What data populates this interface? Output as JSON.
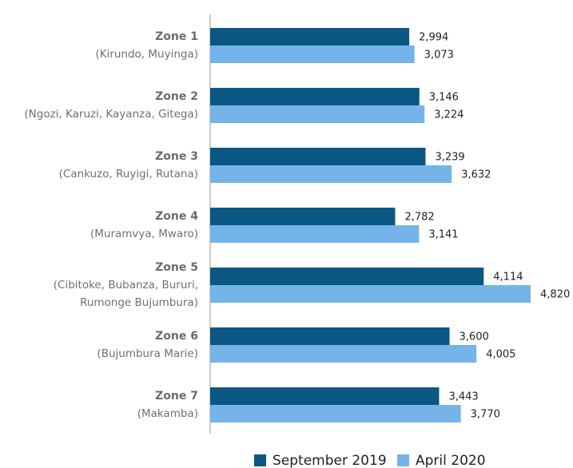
{
  "chart_data": {
    "type": "bar",
    "orientation": "horizontal",
    "categories": [
      "Zone 1",
      "Zone 2",
      "Zone 3",
      "Zone 4",
      "Zone 5",
      "Zone 6",
      "Zone 7"
    ],
    "category_details": [
      [
        "(Kirundo, Muyinga)"
      ],
      [
        "(Ngozi, Karuzi, Kayanza, Gitega)"
      ],
      [
        "(Cankuzo, Ruyigi, Rutana)"
      ],
      [
        "(Muramvya, Mwaro)"
      ],
      [
        "(Cibitoke, Bubanza, Bururi,",
        "Rumonge Bujumbura)"
      ],
      [
        "(Bujumbura Marie)"
      ],
      [
        "(Makamba)"
      ]
    ],
    "series": [
      {
        "name": "September 2019",
        "color": "#0b5784",
        "values": [
          2994,
          3146,
          3239,
          2782,
          4114,
          3600,
          3443
        ],
        "value_labels": [
          "2,994",
          "3,146",
          "3,239",
          "2,782",
          "4,114",
          "3,600",
          "3,443"
        ]
      },
      {
        "name": "April 2020",
        "color": "#74b4e8",
        "values": [
          3073,
          3224,
          3632,
          3141,
          4820,
          4005,
          3770
        ],
        "value_labels": [
          "3,073",
          "3,224",
          "3,632",
          "3,141",
          "4,820",
          "4,005",
          "3,770"
        ]
      }
    ],
    "xlim": [
      0,
      5000
    ],
    "legend": "bottom"
  }
}
